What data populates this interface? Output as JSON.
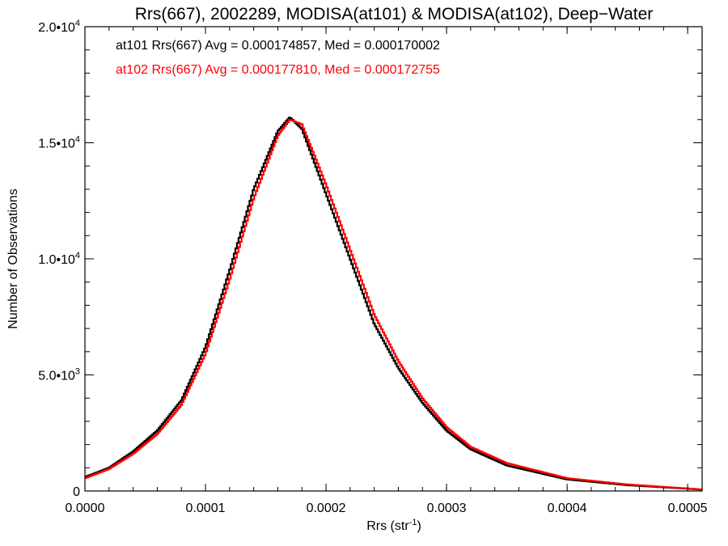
{
  "chart_data": {
    "type": "line",
    "title": "Rrs(667), 2002289, MODISA(at101) & MODISA(at102), Deep−Water",
    "xlabel": "Rrs (str",
    "xlabel_sup": "-1",
    "xlabel_close": ")",
    "ylabel": "Number of Observations",
    "xlim": [
      0.0,
      0.000512
    ],
    "ylim": [
      0,
      20000
    ],
    "grid": false,
    "legend_position": "top-left",
    "x_ticks": [
      {
        "value": 0.0,
        "label": "0.0000"
      },
      {
        "value": 0.0001,
        "label": "0.0001"
      },
      {
        "value": 0.0002,
        "label": "0.0002"
      },
      {
        "value": 0.0003,
        "label": "0.0003"
      },
      {
        "value": 0.0004,
        "label": "0.0004"
      },
      {
        "value": 0.0005,
        "label": "0.0005"
      }
    ],
    "y_ticks": [
      {
        "value": 0,
        "mant": "0",
        "exp": ""
      },
      {
        "value": 5000,
        "mant": "5.0•10",
        "exp": "3"
      },
      {
        "value": 10000,
        "mant": "1.0•10",
        "exp": "4"
      },
      {
        "value": 15000,
        "mant": "1.5•10",
        "exp": "4"
      },
      {
        "value": 20000,
        "mant": "2.0•10",
        "exp": "4"
      }
    ],
    "series": [
      {
        "name": "at101",
        "color": "#000000",
        "legend": "at101 Rrs(667) Avg = 0.000174857, Med = 0.000170002",
        "x": [
          0.0,
          2e-05,
          4e-05,
          6e-05,
          8e-05,
          0.0001,
          0.00012,
          0.00014,
          0.00016,
          0.00017,
          0.00018,
          0.0002,
          0.00022,
          0.00024,
          0.00026,
          0.00028,
          0.0003,
          0.00032,
          0.00035,
          0.0004,
          0.00045,
          0.0005,
          0.000512
        ],
        "y": [
          600,
          1000,
          1700,
          2600,
          3900,
          6200,
          9500,
          13000,
          15500,
          16100,
          15600,
          12800,
          10000,
          7200,
          5300,
          3800,
          2600,
          1800,
          1100,
          500,
          250,
          100,
          60
        ]
      },
      {
        "name": "at102",
        "color": "#ff0000",
        "legend": "at102 Rrs(667) Avg = 0.000177810, Med = 0.000172755",
        "x": [
          0.0,
          2e-05,
          4e-05,
          6e-05,
          8e-05,
          0.0001,
          0.00012,
          0.00014,
          0.00016,
          0.00017,
          0.00018,
          0.0002,
          0.00022,
          0.00024,
          0.00026,
          0.00028,
          0.0003,
          0.00032,
          0.00035,
          0.0004,
          0.00045,
          0.0005,
          0.000512
        ],
        "y": [
          550,
          950,
          1600,
          2450,
          3700,
          5900,
          9100,
          12600,
          15300,
          16000,
          15800,
          13200,
          10400,
          7600,
          5600,
          4000,
          2750,
          1900,
          1200,
          550,
          280,
          110,
          65
        ]
      }
    ]
  }
}
